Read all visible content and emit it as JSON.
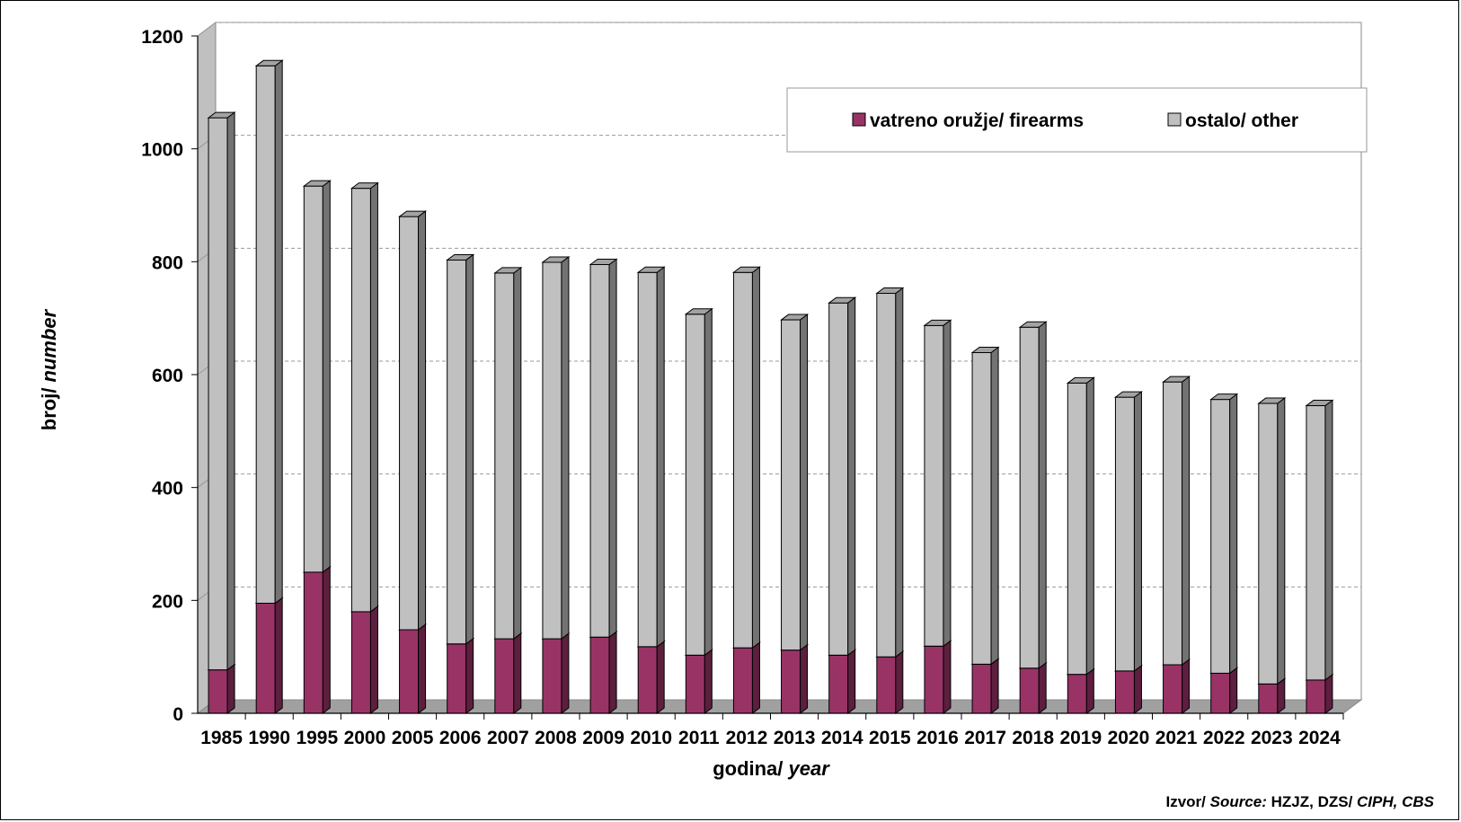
{
  "chart_data": {
    "type": "bar",
    "stacked": true,
    "three_d": true,
    "categories": [
      "1985",
      "1990",
      "1995",
      "2000",
      "2005",
      "2006",
      "2007",
      "2008",
      "2009",
      "2010",
      "2011",
      "2012",
      "2013",
      "2014",
      "2015",
      "2016",
      "2017",
      "2018",
      "2019",
      "2020",
      "2021",
      "2022",
      "2023",
      "2024"
    ],
    "series": [
      {
        "name": "vatreno oružje/ firearms",
        "color": "#993366",
        "values": [
          77,
          195,
          250,
          180,
          148,
          123,
          132,
          132,
          135,
          118,
          103,
          116,
          112,
          103,
          100,
          119,
          87,
          80,
          69,
          75,
          86,
          71,
          52,
          59
        ]
      },
      {
        "name": "ostalo/ other",
        "color": "#c0c0c0",
        "values": [
          978,
          952,
          684,
          750,
          732,
          680,
          648,
          667,
          660,
          663,
          604,
          665,
          585,
          624,
          644,
          568,
          552,
          604,
          516,
          485,
          501,
          485,
          497,
          486
        ]
      }
    ],
    "ylim": [
      0,
      1200
    ],
    "yticks": [
      "0",
      "200",
      "400",
      "600",
      "800",
      "1000",
      "1200"
    ],
    "ylabel_plain": "broj/ ",
    "ylabel_italic": "number",
    "xlabel_plain": "godina/ ",
    "xlabel_italic": "year",
    "grid": true,
    "legend_position": "top-right"
  },
  "source": {
    "label_plain": "Izvor/ ",
    "label_italic": "Source:",
    "agencies_plain": " HZJZ, DZS/ ",
    "agencies_italic": "CIPH, CBS"
  }
}
